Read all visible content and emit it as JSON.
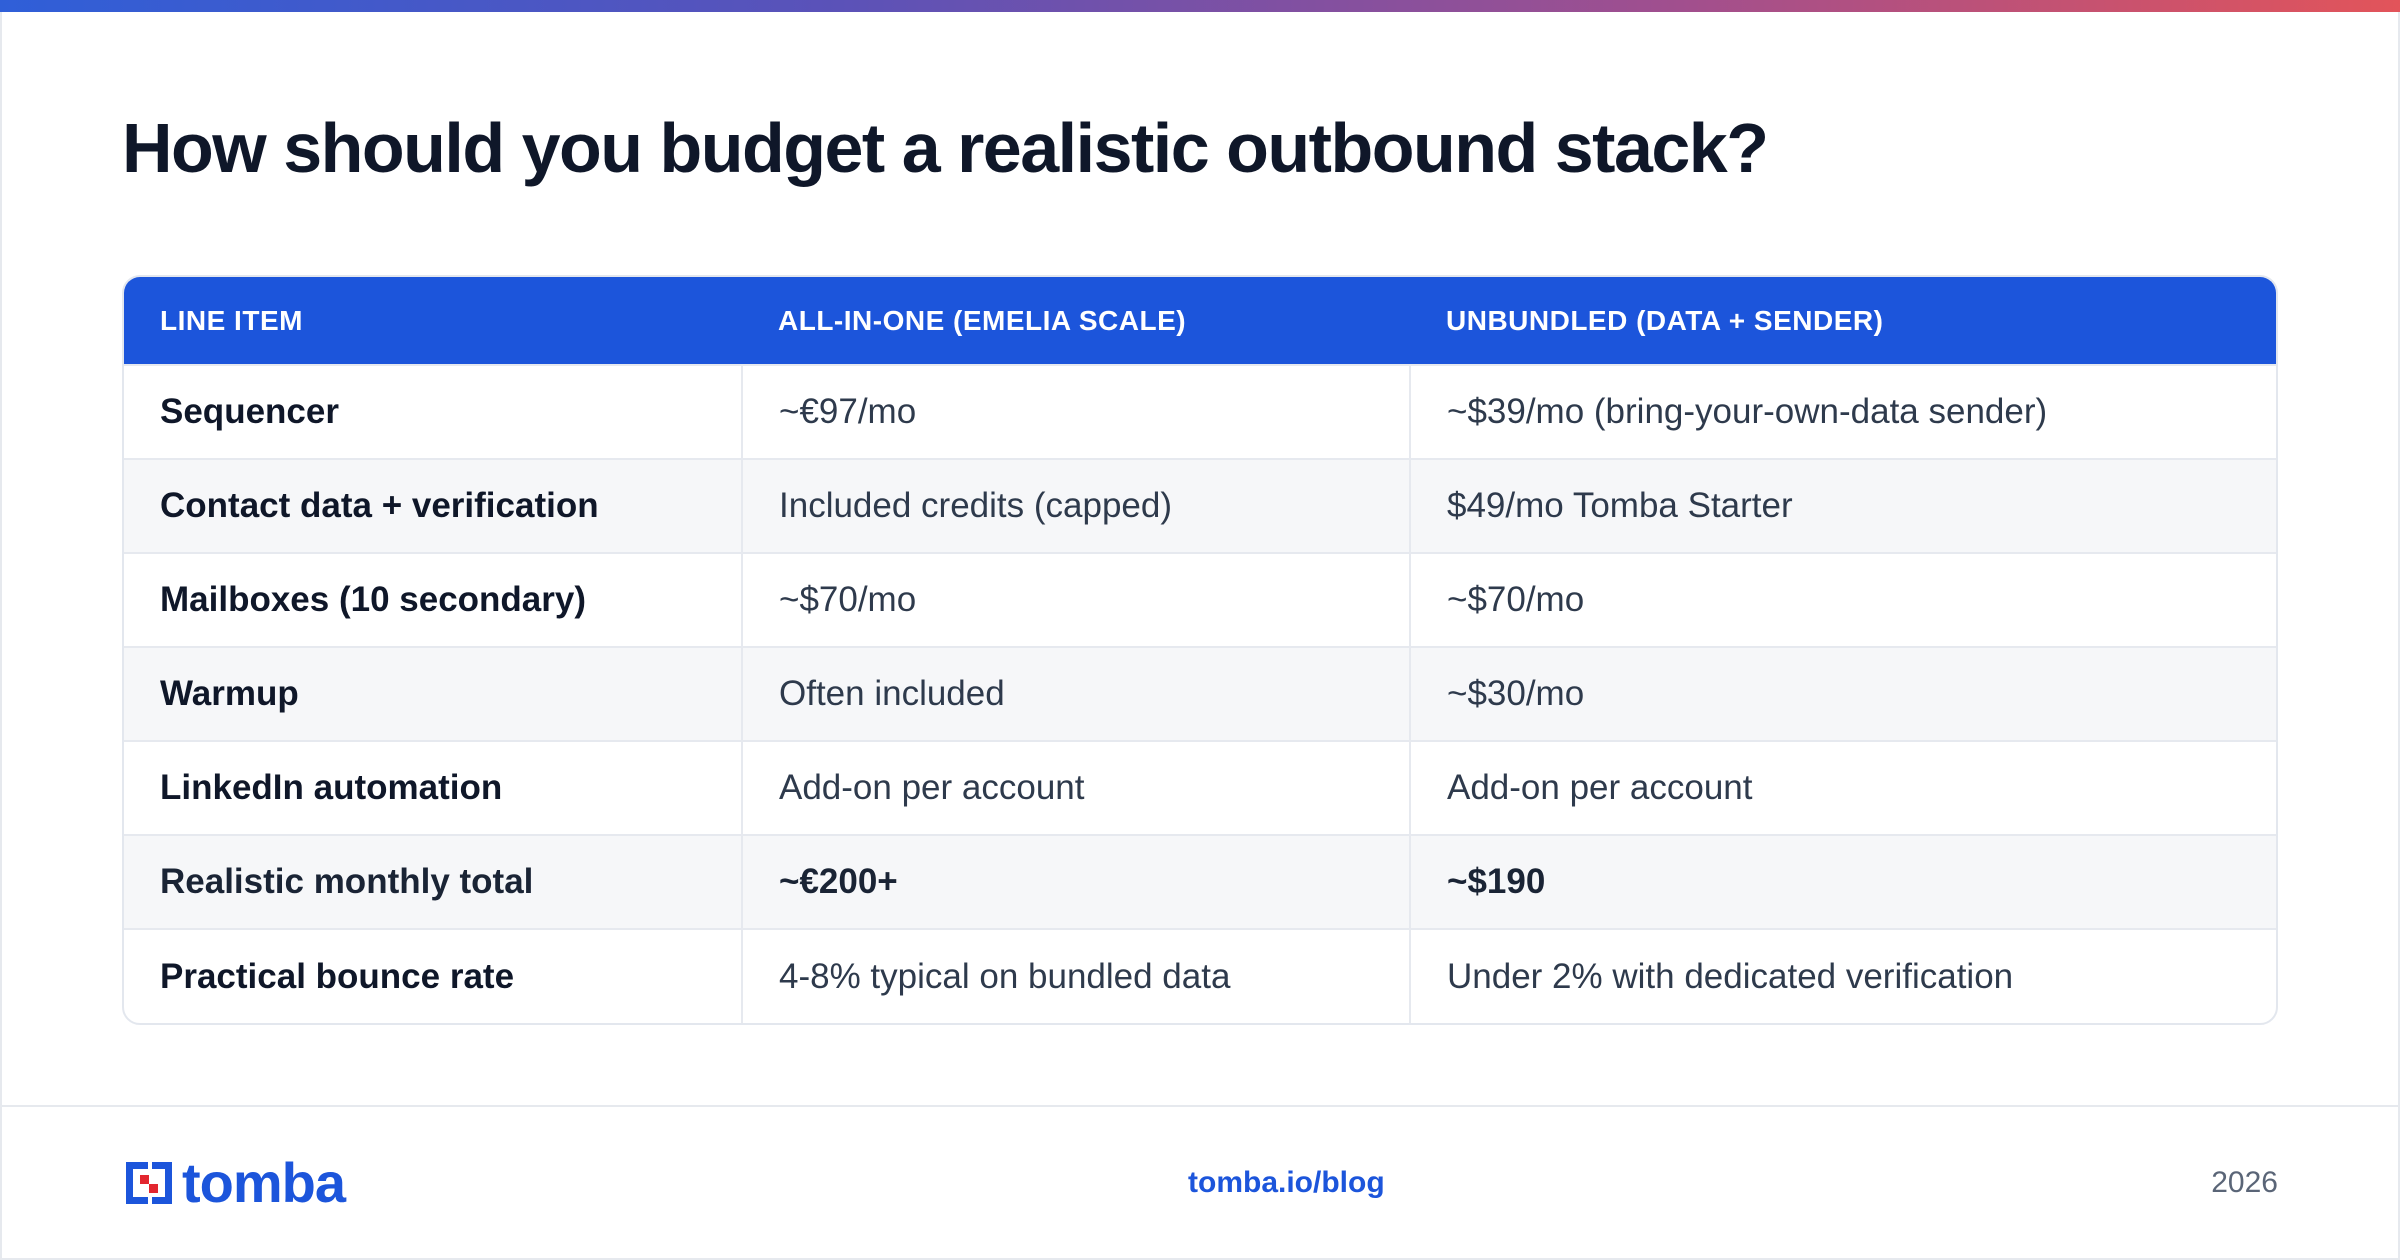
{
  "title": "How should you budget a realistic outbound stack?",
  "table": {
    "headers": [
      "LINE ITEM",
      "ALL-IN-ONE (EMELIA SCALE)",
      "UNBUNDLED (DATA + SENDER)"
    ],
    "rows": [
      [
        "Sequencer",
        "~€97/mo",
        "~$39/mo (bring-your-own-data sender)"
      ],
      [
        "Contact data + verification",
        "Included credits (capped)",
        "$49/mo Tomba Starter"
      ],
      [
        "Mailboxes (10 secondary)",
        "~$70/mo",
        "~$70/mo"
      ],
      [
        "Warmup",
        "Often included",
        "~$30/mo"
      ],
      [
        "LinkedIn automation",
        "Add-on per account",
        "Add-on per account"
      ],
      [
        "Realistic monthly total",
        "~€200+",
        "~$190"
      ],
      [
        "Practical bounce rate",
        "4-8% typical on bundled data",
        "Under 2% with dedicated verification"
      ]
    ]
  },
  "footer": {
    "logo_text": "tomba",
    "link": "tomba.io/blog",
    "year": "2026"
  },
  "colors": {
    "accent": "#1c55db",
    "title": "#0f1729",
    "logo_red": "#e3262f"
  }
}
